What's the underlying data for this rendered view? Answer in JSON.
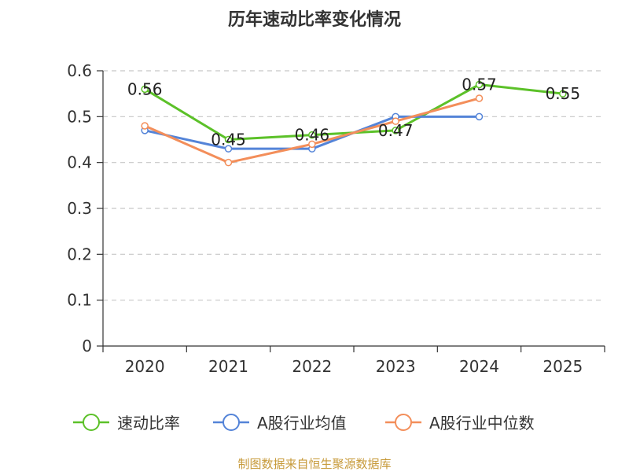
{
  "chart_data": {
    "type": "line",
    "title": "历年速动比率变化情况",
    "categories": [
      "2020",
      "2021",
      "2022",
      "2023",
      "2024",
      "2025"
    ],
    "yticks": [
      "0",
      "0.1",
      "0.2",
      "0.3",
      "0.4",
      "0.5",
      "0.6"
    ],
    "ylim": [
      0,
      0.6
    ],
    "grid": true,
    "legend_position": "bottom",
    "series": [
      {
        "name": "速动比率",
        "color": "#5cc129",
        "values": [
          0.56,
          0.45,
          0.46,
          0.47,
          0.57,
          0.55
        ],
        "labels": [
          "0.56",
          "0.45",
          "0.46",
          "0.47",
          "0.57",
          "0.55"
        ],
        "show_labels": true
      },
      {
        "name": "A股行业均值",
        "color": "#5484d8",
        "values": [
          0.47,
          0.43,
          0.43,
          0.5,
          0.5,
          null
        ],
        "show_labels": false
      },
      {
        "name": "A股行业中位数",
        "color": "#f38e5a",
        "values": [
          0.48,
          0.4,
          0.44,
          0.49,
          0.54,
          null
        ],
        "show_labels": false
      }
    ],
    "source": "制图数据来自恒生聚源数据库"
  }
}
